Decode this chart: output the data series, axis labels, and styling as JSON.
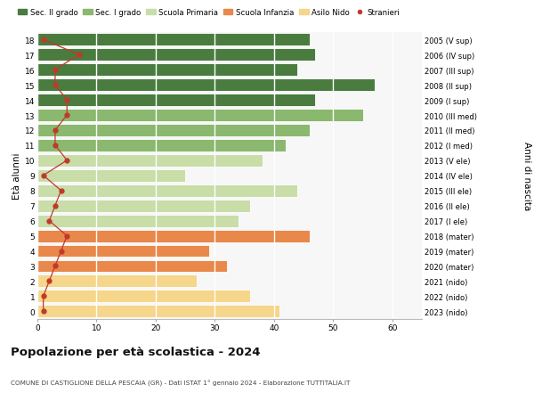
{
  "ages": [
    0,
    1,
    2,
    3,
    4,
    5,
    6,
    7,
    8,
    9,
    10,
    11,
    12,
    13,
    14,
    15,
    16,
    17,
    18
  ],
  "bar_values": [
    41,
    36,
    27,
    32,
    29,
    46,
    34,
    36,
    44,
    25,
    38,
    42,
    46,
    55,
    47,
    57,
    44,
    47,
    46
  ],
  "stranieri": [
    1,
    1,
    2,
    3,
    4,
    5,
    2,
    3,
    4,
    1,
    5,
    3,
    3,
    5,
    5,
    3,
    3,
    7,
    1
  ],
  "bar_colors": [
    "#f5d68a",
    "#f5d68a",
    "#f5d68a",
    "#e8884a",
    "#e8884a",
    "#e8884a",
    "#c8dda8",
    "#c8dda8",
    "#c8dda8",
    "#c8dda8",
    "#c8dda8",
    "#8ab86e",
    "#8ab86e",
    "#8ab86e",
    "#4a7c3f",
    "#4a7c3f",
    "#4a7c3f",
    "#4a7c3f",
    "#4a7c3f"
  ],
  "right_labels": [
    "2023 (nido)",
    "2022 (nido)",
    "2021 (nido)",
    "2020 (mater)",
    "2019 (mater)",
    "2018 (mater)",
    "2017 (I ele)",
    "2016 (II ele)",
    "2015 (III ele)",
    "2014 (IV ele)",
    "2013 (V ele)",
    "2012 (I med)",
    "2011 (II med)",
    "2010 (III med)",
    "2009 (I sup)",
    "2008 (II sup)",
    "2007 (III sup)",
    "2006 (IV sup)",
    "2005 (V sup)"
  ],
  "legend_labels": [
    "Sec. II grado",
    "Sec. I grado",
    "Scuola Primaria",
    "Scuola Infanzia",
    "Asilo Nido",
    "Stranieri"
  ],
  "legend_colors": [
    "#4a7c3f",
    "#8ab86e",
    "#c8dda8",
    "#e8884a",
    "#f5d68a",
    "#c0392b"
  ],
  "ylabel_left": "Età alunni",
  "ylabel_right": "Anni di nascita",
  "title": "Popolazione per età scolastica - 2024",
  "subtitle": "COMUNE DI CASTIGLIONE DELLA PESCAIA (GR) - Dati ISTAT 1° gennaio 2024 - Elaborazione TUTTITALIA.IT",
  "xlim": [
    0,
    65
  ],
  "xticks": [
    0,
    10,
    20,
    30,
    40,
    50,
    60
  ],
  "bg_color": "#ffffff",
  "stranieri_color": "#c0392b"
}
